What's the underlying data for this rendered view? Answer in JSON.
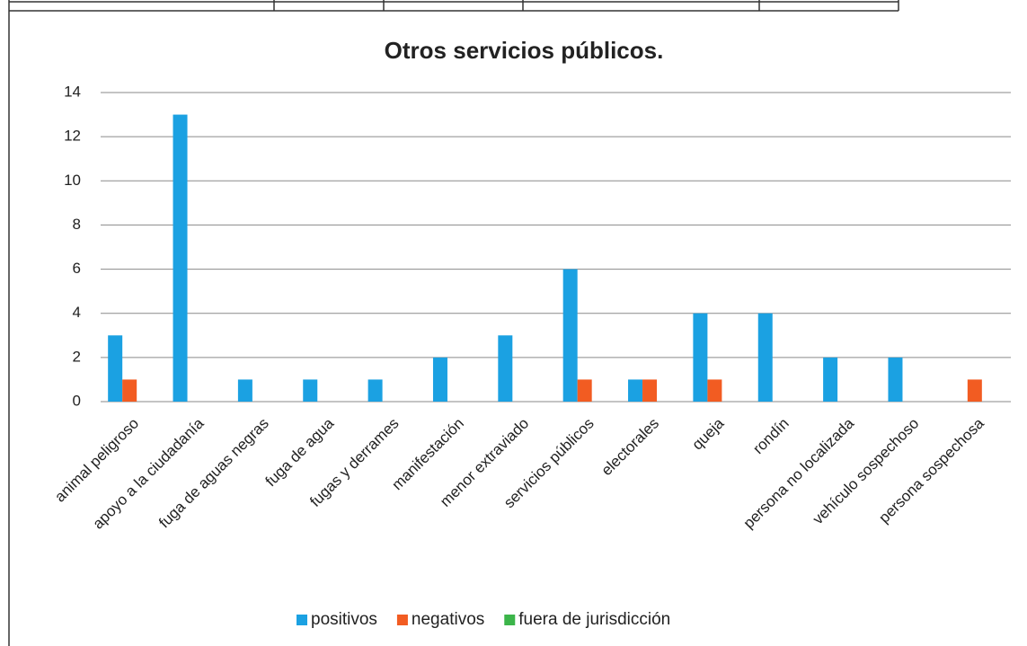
{
  "chart_data": {
    "type": "bar",
    "title": "Otros servicios públicos.",
    "categories": [
      "animal peligroso",
      "apoyo a la ciudadanía",
      "fuga de aguas negras",
      "fuga de agua",
      "fugas y derrames",
      "manifestación",
      "menor extraviado",
      "servicios públicos",
      "electorales",
      "queja",
      "rondín",
      "persona no localizada",
      "vehículo sospechoso",
      "persona sospechosa"
    ],
    "series": [
      {
        "name": "positivos",
        "color": "#1ba1e2",
        "values": [
          3,
          13,
          1,
          1,
          1,
          2,
          3,
          6,
          1,
          4,
          4,
          2,
          2,
          0
        ]
      },
      {
        "name": "negativos",
        "color": "#f25c22",
        "values": [
          1,
          0,
          0,
          0,
          0,
          0,
          0,
          1,
          1,
          1,
          0,
          0,
          0,
          1
        ]
      },
      {
        "name": "fuera de jurisdicción",
        "color": "#3cb54a",
        "values": [
          0,
          0,
          0,
          0,
          0,
          0,
          0,
          0,
          0,
          0,
          0,
          0,
          0,
          0
        ]
      }
    ],
    "ylim": [
      0,
      14
    ],
    "yticks": [
      0,
      2,
      4,
      6,
      8,
      10,
      12,
      14
    ],
    "grid": true,
    "legend": "bottom"
  }
}
